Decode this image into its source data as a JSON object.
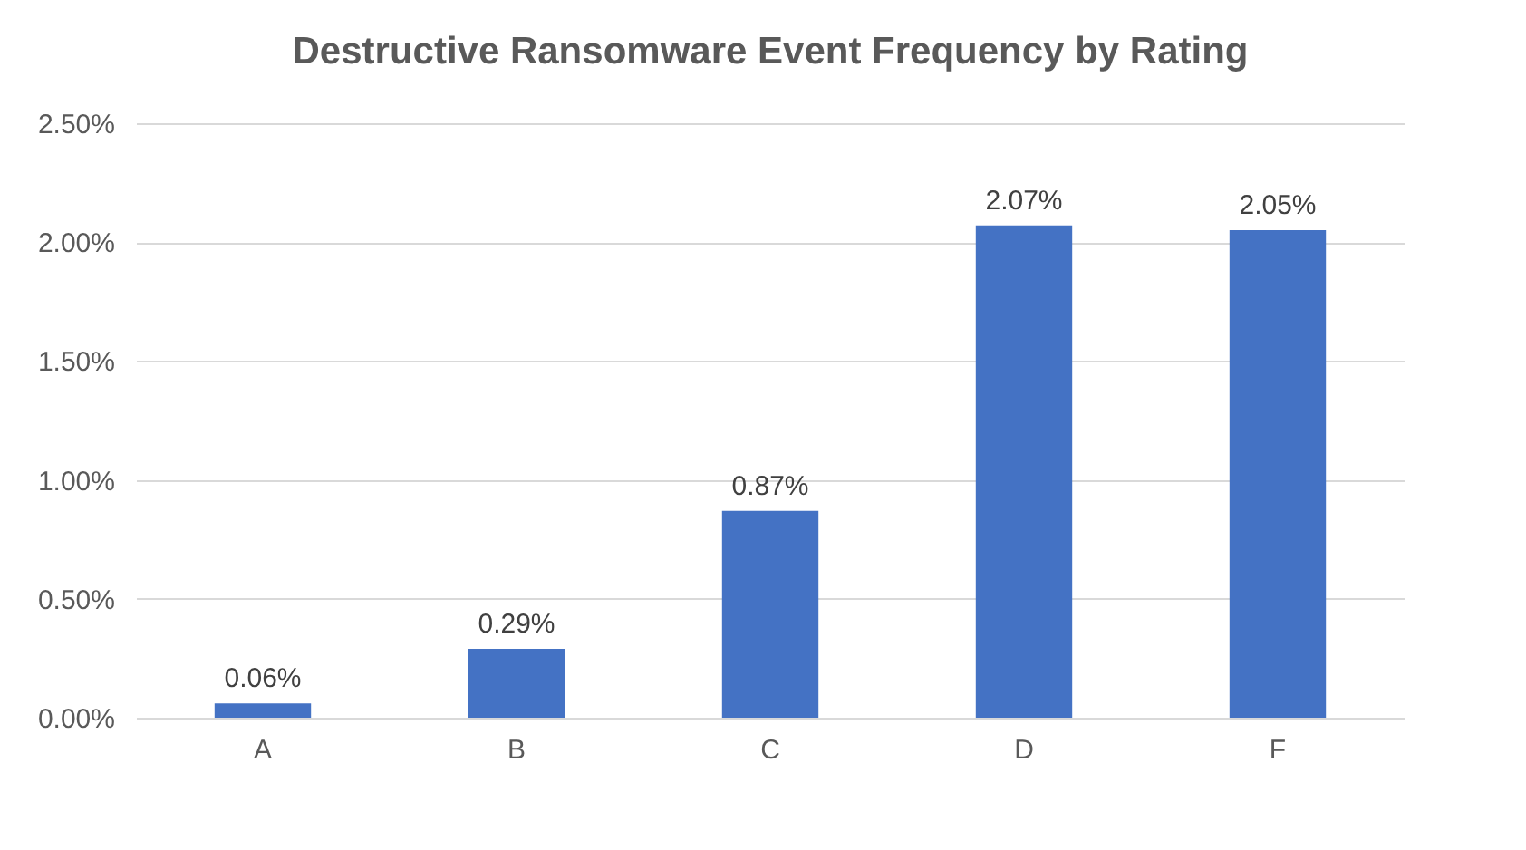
{
  "chart_data": {
    "type": "bar",
    "title": "Destructive Ransomware Event Frequency by Rating",
    "categories": [
      "A",
      "B",
      "C",
      "D",
      "F"
    ],
    "values": [
      0.06,
      0.29,
      0.87,
      2.07,
      2.05
    ],
    "value_labels": [
      "0.06%",
      "0.29%",
      "0.87%",
      "2.07%",
      "2.05%"
    ],
    "color": "#4472c4",
    "ylim": [
      0,
      2.5
    ],
    "yticks": [
      {
        "value": 0,
        "label": "0.00%"
      },
      {
        "value": 0.5,
        "label": "0.50%"
      },
      {
        "value": 1,
        "label": "1.00%"
      },
      {
        "value": 1.5,
        "label": "1.50%"
      },
      {
        "value": 2,
        "label": "2.00%"
      },
      {
        "value": 2.5,
        "label": "2.50%"
      }
    ],
    "grid": "y"
  }
}
